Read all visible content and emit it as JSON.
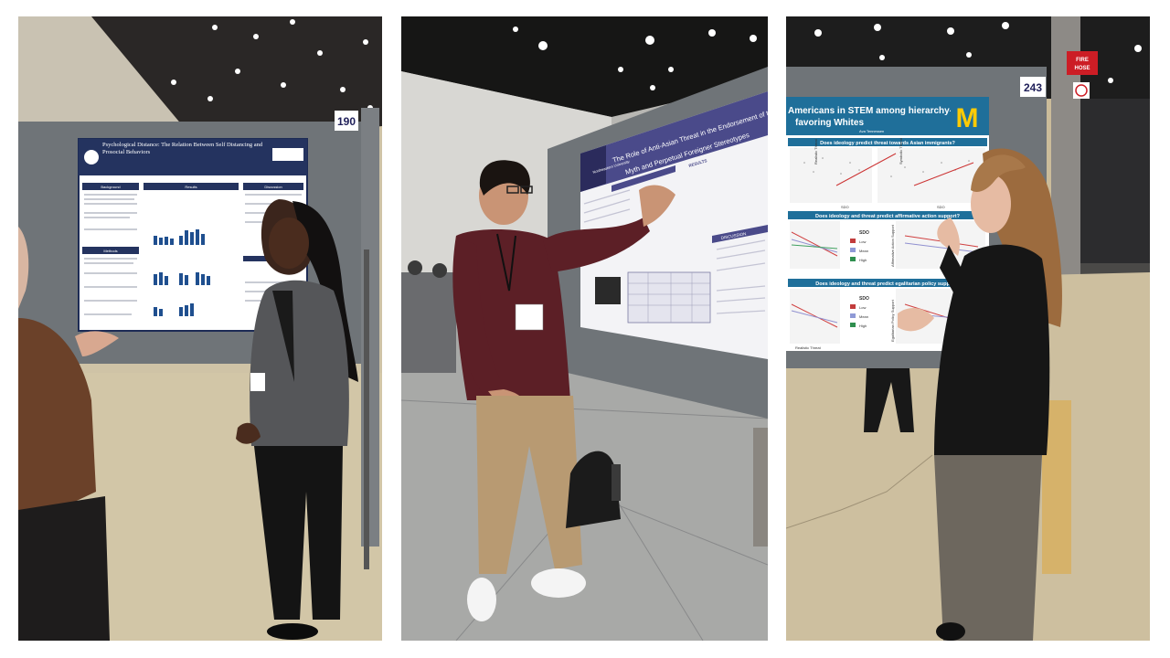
{
  "photos": [
    {
      "board_number": "190",
      "poster": {
        "title": "Psychological Distance: The Relation Between Self Distancing and Prosocial Behaviors",
        "section_background": "Background",
        "section_results": "Results",
        "section_discussion": "Discussion",
        "section_methods": "Methods"
      }
    },
    {
      "poster": {
        "title_line1": "The Role of Anti-Asian Threat in the Endorsement of the Model Minority",
        "title_line2": "Myth and Perpetual Foreigner Stereotypes",
        "logo": "Northeastern University",
        "section_results": "RESULTS",
        "section_discussion": "DISCUSSION"
      }
    },
    {
      "board_number": "243",
      "sign_top": "FIRE",
      "sign_bottom": "HOSE",
      "poster": {
        "title_line1": "Americans in STEM among hierarchy-",
        "title_line2": "favoring Whites",
        "logo": "M",
        "author": "Ava Tennessen",
        "question1": "Does ideology predict threat towards Asian immigrants?",
        "question2": "Does ideology and threat predict affirmative action support?",
        "question3": "Does ideology and threat predict egalitarian policy support?",
        "axis_sdo": "SDO",
        "legend_title": "SDO",
        "legend": [
          "Low",
          "Mean",
          "High"
        ],
        "ylabel1": "Realistic Threat",
        "ylabel2": "Symbolic Threat",
        "ylabel3": "Affirmative Action Support",
        "ylabel4": "Egalitarian Policy Support"
      }
    }
  ],
  "colors": {
    "navy": "#24335f",
    "purple": "#4a4a8a",
    "michigan_blue": "#1f6f9a",
    "maize": "#ffcb05",
    "board_grey": "#6f7478"
  }
}
